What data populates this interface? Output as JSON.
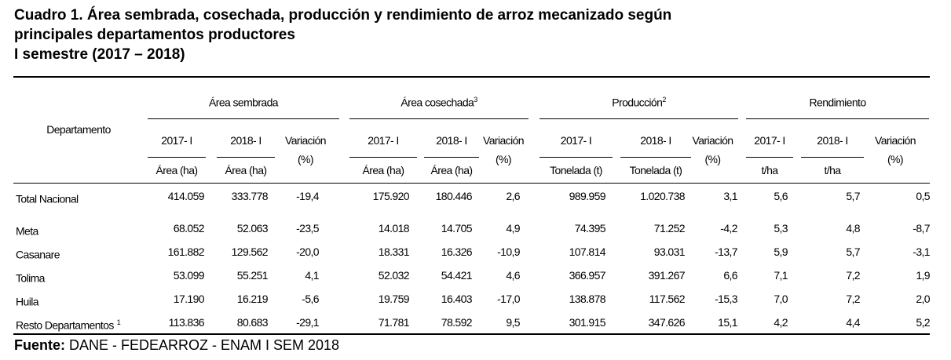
{
  "title": {
    "line1": "Cuadro 1. Área sembrada, cosechada, producción y rendimiento de arroz mecanizado según",
    "line2": "principales departamentos productores",
    "line3": "I semestre (2017 – 2018)"
  },
  "header": {
    "departamento": "Departamento",
    "groups": [
      {
        "label": "Área sembrada",
        "sup": ""
      },
      {
        "label": "Área cosechada",
        "sup": "3"
      },
      {
        "label": "Producción",
        "sup": "2"
      },
      {
        "label": "Rendimiento",
        "sup": ""
      }
    ],
    "y2017": "2017- I",
    "y2018": "2018- I",
    "variacion": "Variación",
    "pct": "(%)",
    "units": [
      "Área (ha)",
      "Área (ha)",
      "Área (ha)",
      "Área (ha)",
      "Tonelada (t)",
      "Tonelada (t)",
      "t/ha",
      "t/ha"
    ]
  },
  "rows": [
    {
      "name": "Total Nacional",
      "sup": "",
      "v": [
        "414.059",
        "333.778",
        "-19,4",
        "175.920",
        "180.446",
        "2,6",
        "989.959",
        "1.020.738",
        "3,1",
        "5,6",
        "5,7",
        "0,5"
      ]
    },
    {
      "name": "Meta",
      "sup": "",
      "v": [
        "68.052",
        "52.063",
        "-23,5",
        "14.018",
        "14.705",
        "4,9",
        "74.395",
        "71.252",
        "-4,2",
        "5,3",
        "4,8",
        "-8,7"
      ]
    },
    {
      "name": "Casanare",
      "sup": "",
      "v": [
        "161.882",
        "129.562",
        "-20,0",
        "18.331",
        "16.326",
        "-10,9",
        "107.814",
        "93.031",
        "-13,7",
        "5,9",
        "5,7",
        "-3,1"
      ]
    },
    {
      "name": "Tolima",
      "sup": "",
      "v": [
        "53.099",
        "55.251",
        "4,1",
        "52.032",
        "54.421",
        "4,6",
        "366.957",
        "391.267",
        "6,6",
        "7,1",
        "7,2",
        "1,9"
      ]
    },
    {
      "name": "Huila",
      "sup": "",
      "v": [
        "17.190",
        "16.219",
        "-5,6",
        "19.759",
        "16.403",
        "-17,0",
        "138.878",
        "117.562",
        "-15,3",
        "7,0",
        "7,2",
        "2,0"
      ]
    },
    {
      "name": "Resto Departamentos",
      "sup": "1",
      "v": [
        "113.836",
        "80.683",
        "-29,1",
        "71.781",
        "78.592",
        "9,5",
        "301.915",
        "347.626",
        "15,1",
        "4,2",
        "4,4",
        "5,2"
      ]
    }
  ],
  "footer": {
    "label": "Fuente:",
    "text": " DANE - FEDEARROZ - ENAM I SEM 2018"
  }
}
